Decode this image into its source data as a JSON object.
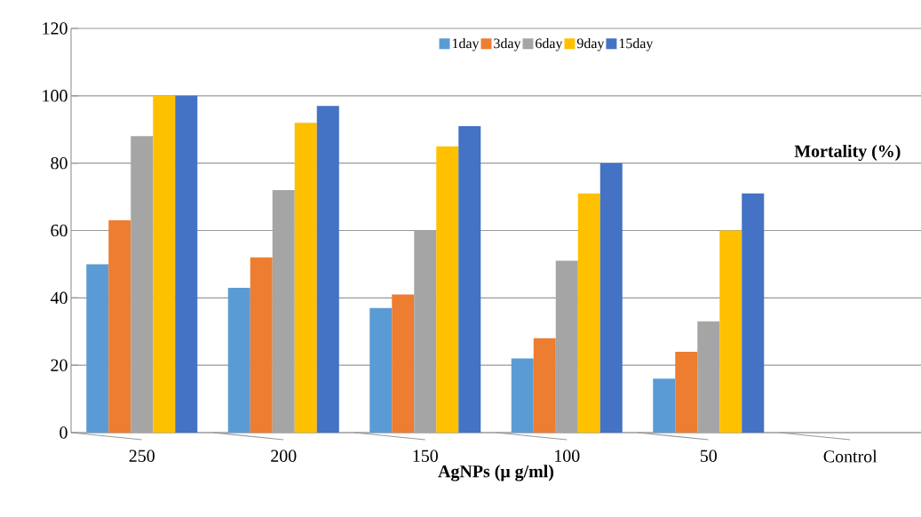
{
  "chart_data": {
    "type": "bar",
    "xlabel": "AgNPs (μ g/ml)",
    "annotations": [
      "Mortality (%)"
    ],
    "categories": [
      "250",
      "200",
      "150",
      "100",
      "50",
      "Control"
    ],
    "series": [
      {
        "name": "1day",
        "color": "#5b9bd5",
        "values": [
          50,
          43,
          37,
          22,
          16,
          null
        ]
      },
      {
        "name": "3day",
        "color": "#ed7d31",
        "values": [
          63,
          52,
          41,
          28,
          24,
          null
        ]
      },
      {
        "name": "6day",
        "color": "#a5a5a5",
        "values": [
          88,
          72,
          60,
          51,
          33,
          null
        ]
      },
      {
        "name": "9day",
        "color": "#ffc000",
        "values": [
          100,
          92,
          85,
          71,
          60,
          null
        ]
      },
      {
        "name": "15day",
        "color": "#4472c4",
        "values": [
          100,
          97,
          91,
          80,
          71,
          null
        ]
      }
    ],
    "ylim": [
      0,
      120
    ],
    "yticks": [
      0,
      20,
      40,
      60,
      80,
      100,
      120
    ],
    "grid": "y",
    "legend": "top"
  }
}
